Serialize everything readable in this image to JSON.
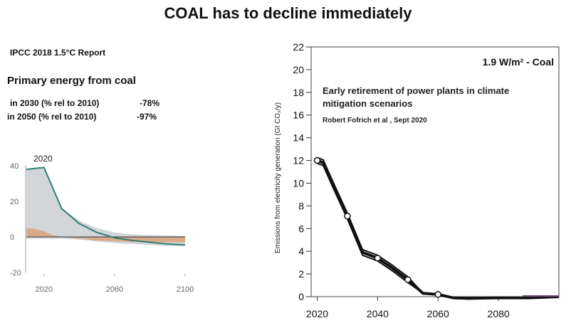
{
  "title": "COAL has to decline immediately",
  "left_panel": {
    "source": "IPCC 2018 1.5°C Report",
    "heading": "Primary energy from coal",
    "rows": [
      {
        "label": "in 2030 (% rel to 2010)",
        "value": "-78%"
      },
      {
        "label": "in 2050 (% rel to 2010)",
        "value": "-97%"
      }
    ]
  },
  "chart_data": [
    {
      "type": "area",
      "annotation": "2020",
      "xlim": [
        2010,
        2100
      ],
      "ylim": [
        -20,
        40
      ],
      "x_ticks": [
        "2020",
        "2060",
        "2100"
      ],
      "y_ticks": [
        "40",
        "20",
        "0",
        "-20"
      ],
      "series": [
        {
          "x": [
            2010,
            2020,
            2030,
            2040,
            2050,
            2060,
            2070,
            2080,
            2090,
            2100
          ],
          "values": [
            38,
            39,
            16,
            7.5,
            2.5,
            -0.5,
            -2,
            -3,
            -4,
            -4.5
          ],
          "color": "#2f7f73"
        }
      ],
      "band_upper": {
        "x": [
          2010,
          2020,
          2030,
          2040,
          2050,
          2060,
          2070,
          2080,
          2090,
          2100
        ],
        "values": [
          38,
          39,
          16,
          9,
          5,
          2.5,
          1.5,
          1,
          0.8,
          0.5
        ],
        "color": "#d2d6d9"
      },
      "band_lower": {
        "x": [
          2010,
          2020,
          2030,
          2040,
          2050,
          2060,
          2070,
          2080,
          2090,
          2100
        ],
        "values": [
          -1,
          -1,
          -1,
          -1.5,
          -2.5,
          -3.5,
          -4,
          -4.5,
          -5,
          -5
        ],
        "color": "#d2d6d9"
      },
      "orange_band": {
        "x": [
          2010,
          2015,
          2020,
          2025,
          2030,
          2040,
          2050,
          2060,
          2070,
          2080,
          2090,
          2100
        ],
        "upper": [
          5,
          4.5,
          3,
          1,
          0,
          0,
          0,
          0,
          0,
          0,
          0,
          0
        ],
        "lower": [
          0,
          0,
          0,
          0,
          0,
          -1,
          -2,
          -2.5,
          -2.8,
          -3,
          -3,
          -3
        ],
        "color": "#d9a27a"
      }
    },
    {
      "type": "line",
      "panel_label": "1.9 W/m² - Coal",
      "subtitle": "Early retirement of power plants in climate mitigation scenarios",
      "credit": "Robert Fofrich et al , Sept 2020",
      "ylabel": "Emissions from electricity generation (Gt CO₂/y)",
      "xlim": [
        2018,
        2100
      ],
      "ylim": [
        0,
        22
      ],
      "x_ticks": [
        "2020",
        "2040",
        "2060",
        "2080"
      ],
      "y_ticks": [
        "0",
        "2",
        "4",
        "6",
        "8",
        "10",
        "12",
        "14",
        "16",
        "18",
        "20",
        "22"
      ],
      "series": [
        {
          "x": [
            2020,
            2022,
            2025,
            2030,
            2035,
            2040,
            2045,
            2050,
            2055,
            2060,
            2065,
            2070,
            2080,
            2090,
            2100
          ],
          "values": [
            12,
            11.8,
            10,
            7.1,
            3.9,
            3.4,
            2.5,
            1.5,
            0.3,
            0.2,
            -0.1,
            -0.15,
            -0.1,
            -0.1,
            0
          ],
          "color": "#111111"
        }
      ],
      "markers": [
        {
          "x": 2020,
          "y": 12
        },
        {
          "x": 2030,
          "y": 7.1
        },
        {
          "x": 2040,
          "y": 3.4
        },
        {
          "x": 2050,
          "y": 1.5
        },
        {
          "x": 2060,
          "y": 0.2
        }
      ]
    }
  ]
}
